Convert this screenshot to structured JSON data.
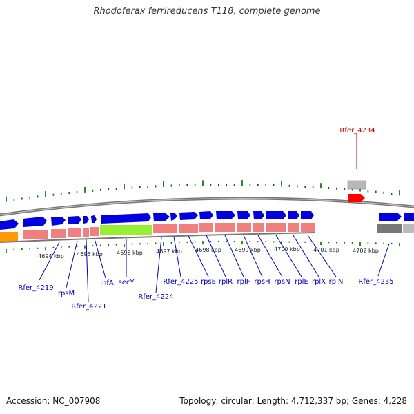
{
  "title": "Rhodoferax ferrireducens T118, complete genome",
  "footer": {
    "accession": "Accession: NC_007908",
    "summary": "Topology: circular; Length: 4,712,337 bp; Genes: 4,228"
  },
  "colors": {
    "forward_gene": "#0000e0",
    "highlighted_gene": "#ff0000",
    "cds_pink": "#f08080",
    "cds_green": "#99ee33",
    "cds_orange": "#ff9900",
    "cds_gray": "#777777",
    "label": "#0000b8",
    "tick": "#006600",
    "backbone": "#777777"
  },
  "kbp_ticks": [
    "4694 kbp",
    "4695 kbp",
    "4696 kbp",
    "4697 kbp",
    "4698 kbp",
    "4699 kbp",
    "4700 kbp",
    "4701 kbp",
    "4702 kbp"
  ],
  "gene_labels": [
    "Rfer_4219",
    "rpsM",
    "Rfer_4221",
    "infA",
    "secY",
    "Rfer_4224",
    "Rfer_4225",
    "rpsE",
    "rplR",
    "rplF",
    "rpsH",
    "rpsN",
    "rplE",
    "rplX",
    "rplN",
    "Rfer_4235"
  ],
  "highlight_label": "Rfer_4234"
}
